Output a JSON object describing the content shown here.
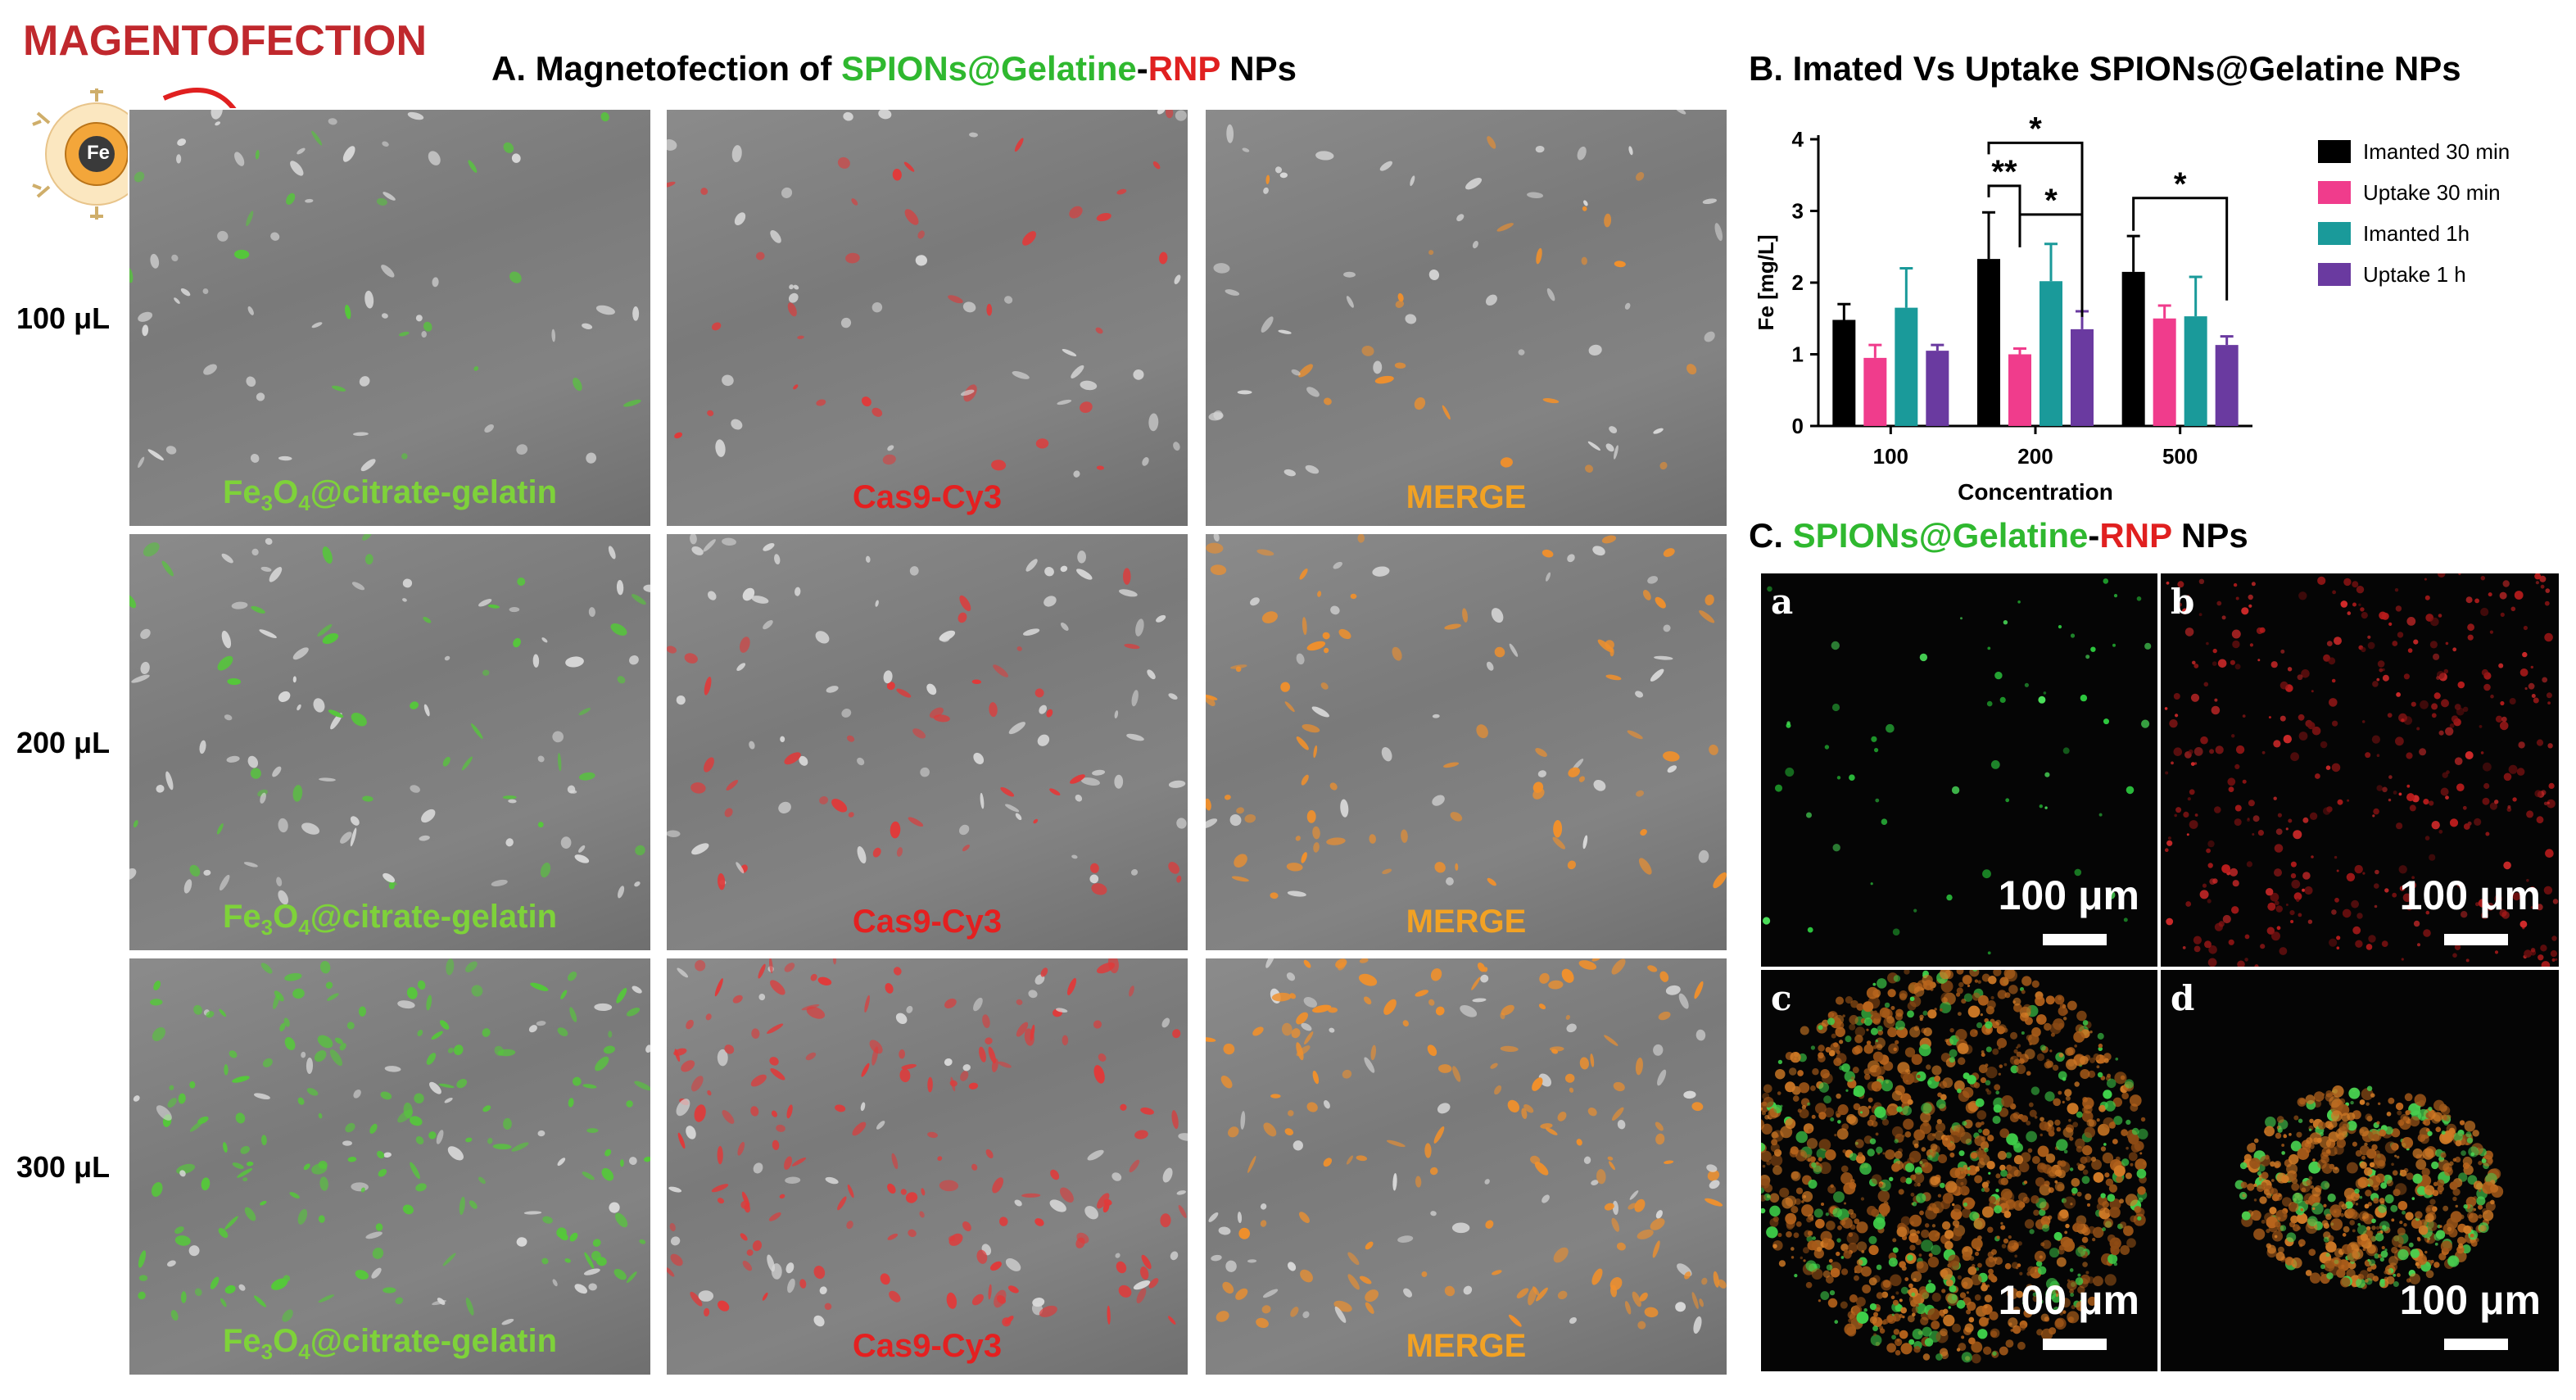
{
  "header": {
    "magnetofection_label": "MAGENTOFECTION",
    "fe_label": "Fe"
  },
  "panel_a": {
    "prefix": "A. Magnetofection of ",
    "green": "SPIONs@Gelatine",
    "dash": "-",
    "red": "RNP",
    "suffix": " NPs",
    "rows": [
      {
        "label": "100 μL"
      },
      {
        "label": "200 μL"
      },
      {
        "label": "300 μL"
      }
    ],
    "captions": {
      "green_pre": "Fe",
      "green_sub1": "3",
      "green_mid": "O",
      "green_sub2": "4",
      "green_post": "@citrate-gelatin",
      "red": "Cas9-Cy3",
      "merge": "MERGE"
    },
    "colors": {
      "green": "#7ed23a",
      "red": "#e42020",
      "orange": "#f2a224"
    }
  },
  "panel_b": {
    "title": "B. Imated Vs Uptake SPIONs@Gelatine NPs",
    "significance": {
      "s1": "*",
      "s2": "**",
      "s3": "*",
      "s4": "*"
    }
  },
  "chart_data": {
    "type": "bar",
    "title": "B. Imated Vs Uptake SPIONs@Gelatine NPs",
    "xlabel": "Concentration",
    "ylabel": "Fe [mg/L]",
    "ylim": [
      0,
      4
    ],
    "yticks": [
      "0",
      "1",
      "2",
      "3",
      "4"
    ],
    "categories": [
      "100",
      "200",
      "500"
    ],
    "legend_position": "right",
    "series": [
      {
        "name": "Imanted 30 min",
        "color": "#000000",
        "values": [
          1.48,
          2.33,
          2.15
        ],
        "err": [
          0.22,
          0.65,
          0.5
        ]
      },
      {
        "name": "Uptake 30 min",
        "color": "#f03c8c",
        "values": [
          0.95,
          1.0,
          1.5
        ],
        "err": [
          0.18,
          0.08,
          0.18
        ]
      },
      {
        "name": "Imanted 1h",
        "color": "#1a9a9a",
        "values": [
          1.65,
          2.02,
          1.53
        ],
        "err": [
          0.55,
          0.52,
          0.55
        ]
      },
      {
        "name": "Uptake 1 h",
        "color": "#6a3aa0",
        "values": [
          1.05,
          1.35,
          1.13
        ],
        "err": [
          0.08,
          0.25,
          0.12
        ]
      }
    ]
  },
  "panel_c": {
    "prefix": "C. ",
    "green": "SPIONs@Gelatine",
    "dash": "-",
    "red": "RNP",
    "suffix": " NPs",
    "panels": [
      {
        "letter": "a",
        "scale": "100 μm"
      },
      {
        "letter": "b",
        "scale": "100 μm"
      },
      {
        "letter": "c",
        "scale": "100 μm"
      },
      {
        "letter": "d",
        "scale": "100 μm"
      }
    ]
  }
}
